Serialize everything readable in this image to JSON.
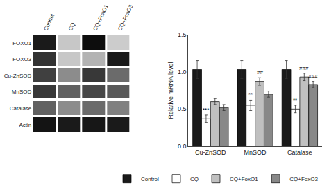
{
  "chart_data": [
    {
      "type": "heatmap",
      "x": [
        "Control",
        "CQ",
        "CQ+FoxO1",
        "CQ+FoxO3"
      ],
      "y": [
        "FOXO1",
        "FOXO3",
        "Cu-ZnSOD",
        "MnSOD",
        "Catalase",
        "Actin"
      ],
      "values": [
        [
          0.1,
          0.78,
          0.05,
          0.8
        ],
        [
          0.2,
          0.78,
          0.7,
          0.1
        ],
        [
          0.25,
          0.55,
          0.22,
          0.42
        ],
        [
          0.22,
          0.38,
          0.28,
          0.35
        ],
        [
          0.38,
          0.55,
          0.42,
          0.5
        ],
        [
          0.08,
          0.1,
          0.09,
          0.1
        ]
      ]
    },
    {
      "type": "bar",
      "categories": [
        "Cu-ZnSOD",
        "MnSOD",
        "Catalase"
      ],
      "series": [
        {
          "name": "Control",
          "color": "#1a1a1a",
          "values": [
            1.03,
            1.03,
            1.03
          ],
          "errors": [
            0.12,
            0.12,
            0.12
          ]
        },
        {
          "name": "CQ",
          "color": "#ffffff",
          "values": [
            0.37,
            0.55,
            0.5
          ],
          "errors": [
            0.05,
            0.07,
            0.05
          ]
        },
        {
          "name": "CQ+FoxO1",
          "color": "#c0c0c0",
          "values": [
            0.6,
            0.87,
            0.93
          ],
          "errors": [
            0.04,
            0.05,
            0.05
          ]
        },
        {
          "name": "CQ+FoxO3",
          "color": "#888888",
          "values": [
            0.52,
            0.7,
            0.83
          ],
          "errors": [
            0.04,
            0.04,
            0.04
          ]
        }
      ],
      "ylabel": "Relative mRNA level",
      "ylim": [
        0.0,
        1.5
      ],
      "yticks": [
        {
          "value": 0.0,
          "label": "0.0"
        },
        {
          "value": 0.5,
          "label": "0.5"
        },
        {
          "value": 1.0,
          "label": "1.0"
        },
        {
          "value": 1.5,
          "label": "1.5"
        }
      ],
      "annotations": [
        {
          "category": "Cu-ZnSOD",
          "series": "CQ",
          "text": "***"
        },
        {
          "category": "MnSOD",
          "series": "CQ",
          "text": "**"
        },
        {
          "category": "MnSOD",
          "series": "CQ+FoxO1",
          "text": "##"
        },
        {
          "category": "Catalase",
          "series": "CQ",
          "text": "**"
        },
        {
          "category": "Catalase",
          "series": "CQ+FoxO1",
          "text": "###"
        },
        {
          "category": "Catalase",
          "series": "CQ+FoxO3",
          "text": "###"
        }
      ],
      "grid": false,
      "legend": "bottom"
    }
  ]
}
